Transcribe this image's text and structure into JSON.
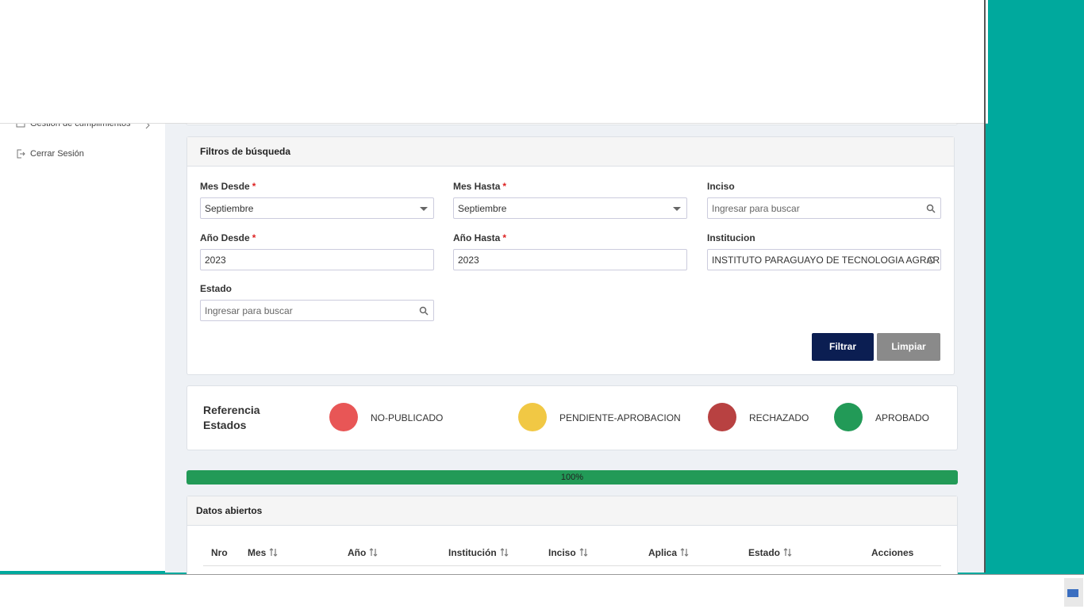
{
  "sidebar": {
    "items": [
      "Gestion de cumplimientos",
      "Cerrar Sesión"
    ]
  },
  "filters": {
    "title": "Filtros de búsqueda",
    "required_mark": "*",
    "fields": [
      {
        "label": "Mes Desde",
        "value": "Septiembre"
      },
      {
        "label": "Mes Hasta",
        "value": "Septiembre"
      },
      {
        "label": "Inciso",
        "placeholder": "Ingresar para buscar"
      },
      {
        "label": "Año Desde",
        "value": "2023"
      },
      {
        "label": "Año Hasta",
        "value": "2023"
      },
      {
        "label": "Institucion",
        "value": "INSTITUTO PARAGUAYO DE TECNOLOGIA AGRARIA -"
      },
      {
        "label": "Estado",
        "placeholder": "Ingresar para buscar"
      }
    ],
    "buttons": [
      "Filtrar",
      "Limpiar"
    ]
  },
  "legend": {
    "title": "Referencia Estados",
    "states": [
      {
        "name": "NO-PUBLICADO",
        "color": "#e85656"
      },
      {
        "name": "PENDIENTE-APROBACION",
        "color": "#f1c844"
      },
      {
        "name": "RECHAZADO",
        "color": "#b84141"
      },
      {
        "name": "APROBADO",
        "color": "#229a57"
      }
    ]
  },
  "progress": {
    "label": "100%"
  },
  "table": {
    "title": "Datos abiertos",
    "columns": [
      {
        "name": "Nro",
        "sortable": false
      },
      {
        "name": "Mes",
        "sortable": true
      },
      {
        "name": "Año",
        "sortable": true
      },
      {
        "name": "Institución",
        "sortable": true
      },
      {
        "name": "Inciso",
        "sortable": true
      },
      {
        "name": "Aplica",
        "sortable": true
      },
      {
        "name": "Estado",
        "sortable": true
      },
      {
        "name": "Acciones",
        "sortable": false
      }
    ]
  }
}
